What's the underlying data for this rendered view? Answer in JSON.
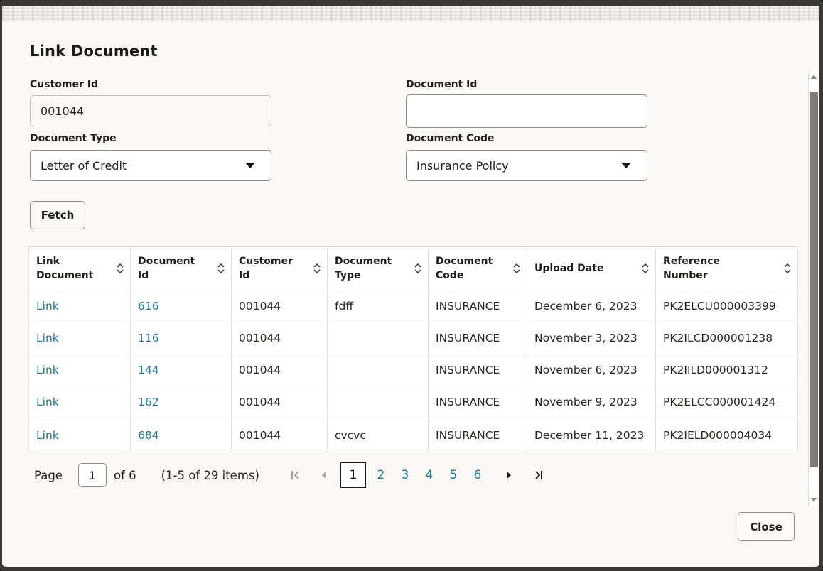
{
  "dialog": {
    "title": "Link Document",
    "close_label": "Close"
  },
  "form": {
    "customer_id": {
      "label": "Customer Id",
      "value": "001044"
    },
    "document_id": {
      "label": "Document Id",
      "value": ""
    },
    "document_type": {
      "label": "Document Type",
      "value": "Letter of Credit"
    },
    "document_code": {
      "label": "Document Code",
      "value": "Insurance Policy"
    },
    "fetch_label": "Fetch"
  },
  "table": {
    "columns": [
      "Link Document",
      "Document Id",
      "Customer Id",
      "Document Type",
      "Document Code",
      "Upload Date",
      "Reference Number"
    ],
    "rows": [
      {
        "link": "Link",
        "document_id": "616",
        "customer_id": "001044",
        "document_type": "fdff",
        "document_code": "INSURANCE",
        "upload_date": "December 6, 2023",
        "reference_number": "PK2ELCU000003399"
      },
      {
        "link": "Link",
        "document_id": "116",
        "customer_id": "001044",
        "document_type": "",
        "document_code": "INSURANCE",
        "upload_date": "November 3, 2023",
        "reference_number": "PK2ILCD000001238"
      },
      {
        "link": "Link",
        "document_id": "144",
        "customer_id": "001044",
        "document_type": "",
        "document_code": "INSURANCE",
        "upload_date": "November 6, 2023",
        "reference_number": "PK2IILD000001312"
      },
      {
        "link": "Link",
        "document_id": "162",
        "customer_id": "001044",
        "document_type": "",
        "document_code": "INSURANCE",
        "upload_date": "November 9, 2023",
        "reference_number": "PK2ELCC000001424"
      },
      {
        "link": "Link",
        "document_id": "684",
        "customer_id": "001044",
        "document_type": "cvcvc",
        "document_code": "INSURANCE",
        "upload_date": "December 11, 2023",
        "reference_number": "PK2IELD000004034"
      }
    ]
  },
  "pagination": {
    "page_label": "Page",
    "current_page": "1",
    "of_label": "of 6",
    "items_label": "(1-5 of 29 items)",
    "pages": [
      "1",
      "2",
      "3",
      "4",
      "5",
      "6"
    ]
  },
  "colors": {
    "link": "#1f7896",
    "frame": "#3a3935",
    "dialog_background": "#f9f8f5"
  }
}
